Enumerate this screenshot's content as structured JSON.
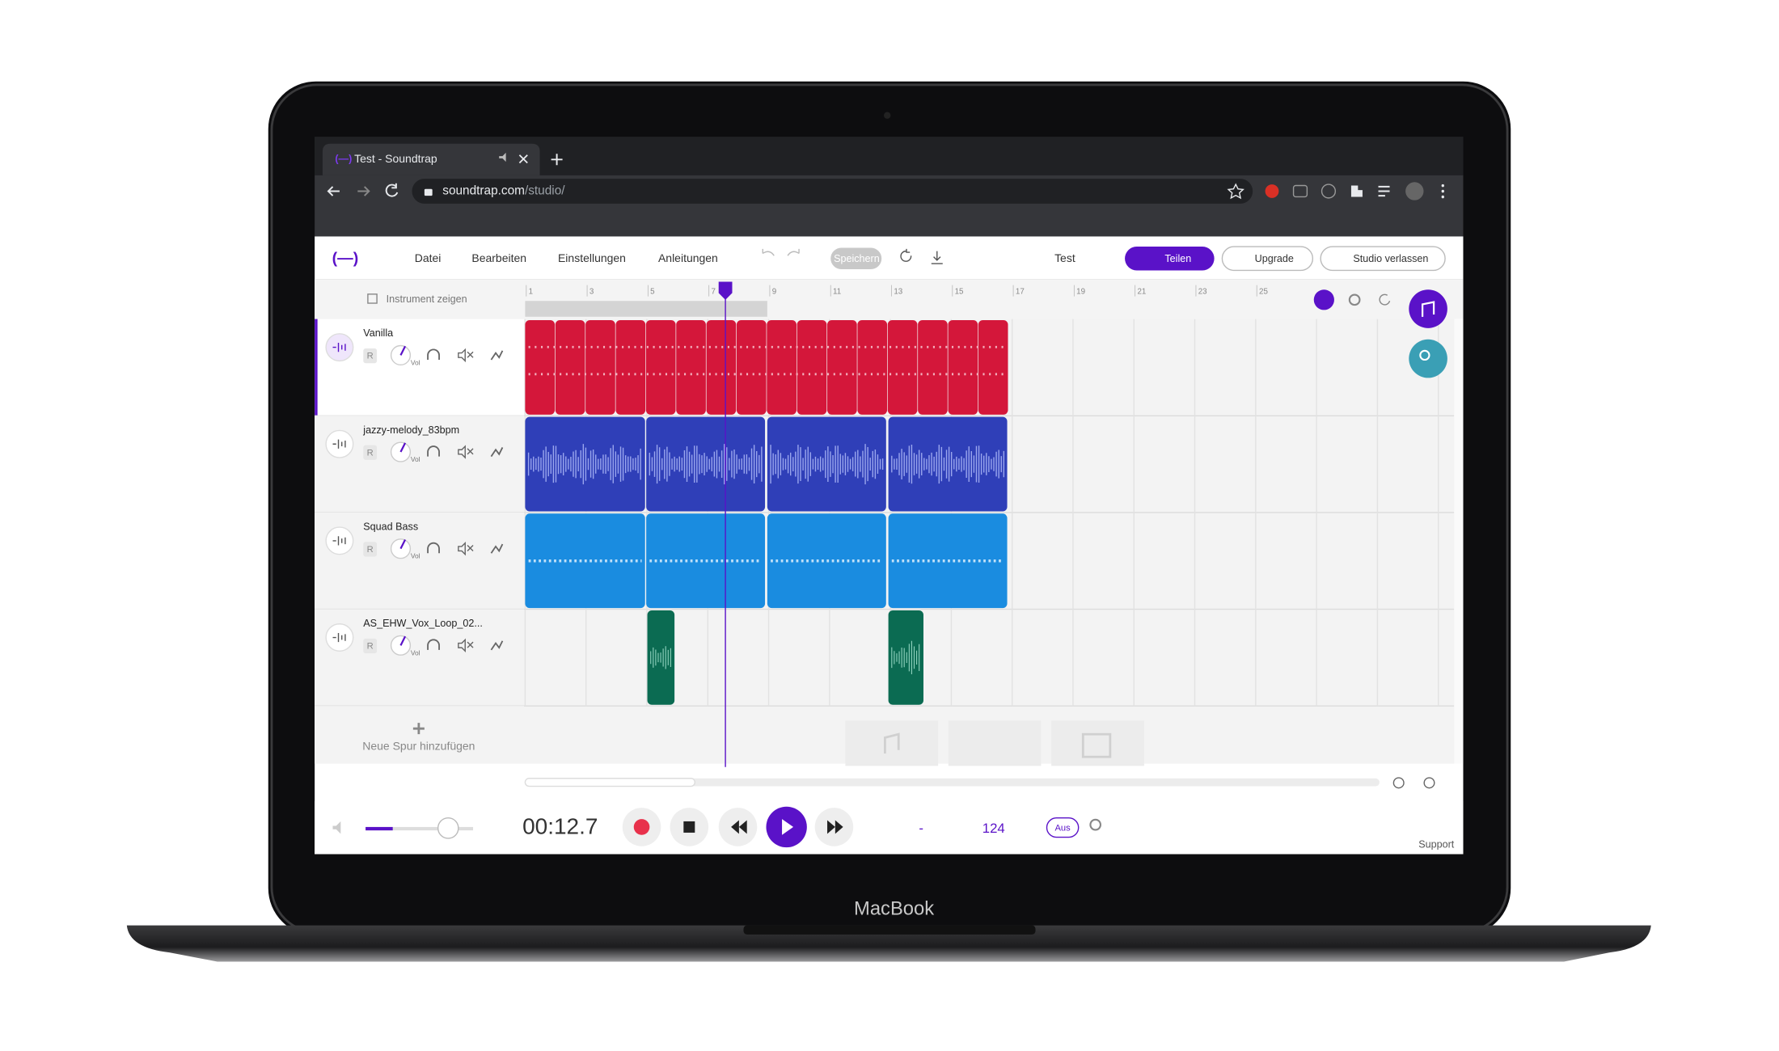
{
  "laptop": {
    "brand": "MacBook"
  },
  "browser": {
    "tab_title": "Test - Soundtrap",
    "url_host": "soundtrap.com",
    "url_path": "/studio/"
  },
  "menu": {
    "items": [
      "Datei",
      "Bearbeiten",
      "Einstellungen",
      "Anleitungen"
    ],
    "save": "Speichern",
    "project": "Test",
    "share": "Teilen",
    "upgrade": "Upgrade",
    "exit": "Studio verlassen"
  },
  "timeline": {
    "show_instrument": "Instrument zeigen",
    "ruler": [
      1,
      3,
      5,
      7,
      9,
      11,
      13,
      15,
      17,
      19,
      21,
      23,
      25
    ]
  },
  "tracks": [
    {
      "name": "Vanilla",
      "record": "R",
      "volume": "Vol"
    },
    {
      "name": "jazzy-melody_83bpm",
      "record": "R",
      "volume": "Vol"
    },
    {
      "name": "Squad Bass",
      "record": "R",
      "volume": "Vol"
    },
    {
      "name": "AS_EHW_Vox_Loop_02...",
      "record": "R",
      "volume": "Vol"
    }
  ],
  "add_track": "Neue Spur hinzufügen",
  "transport": {
    "time": "00:12.7",
    "key": "-",
    "tempo": "124",
    "metronome": "Aus"
  },
  "footer": {
    "support": "Support"
  }
}
